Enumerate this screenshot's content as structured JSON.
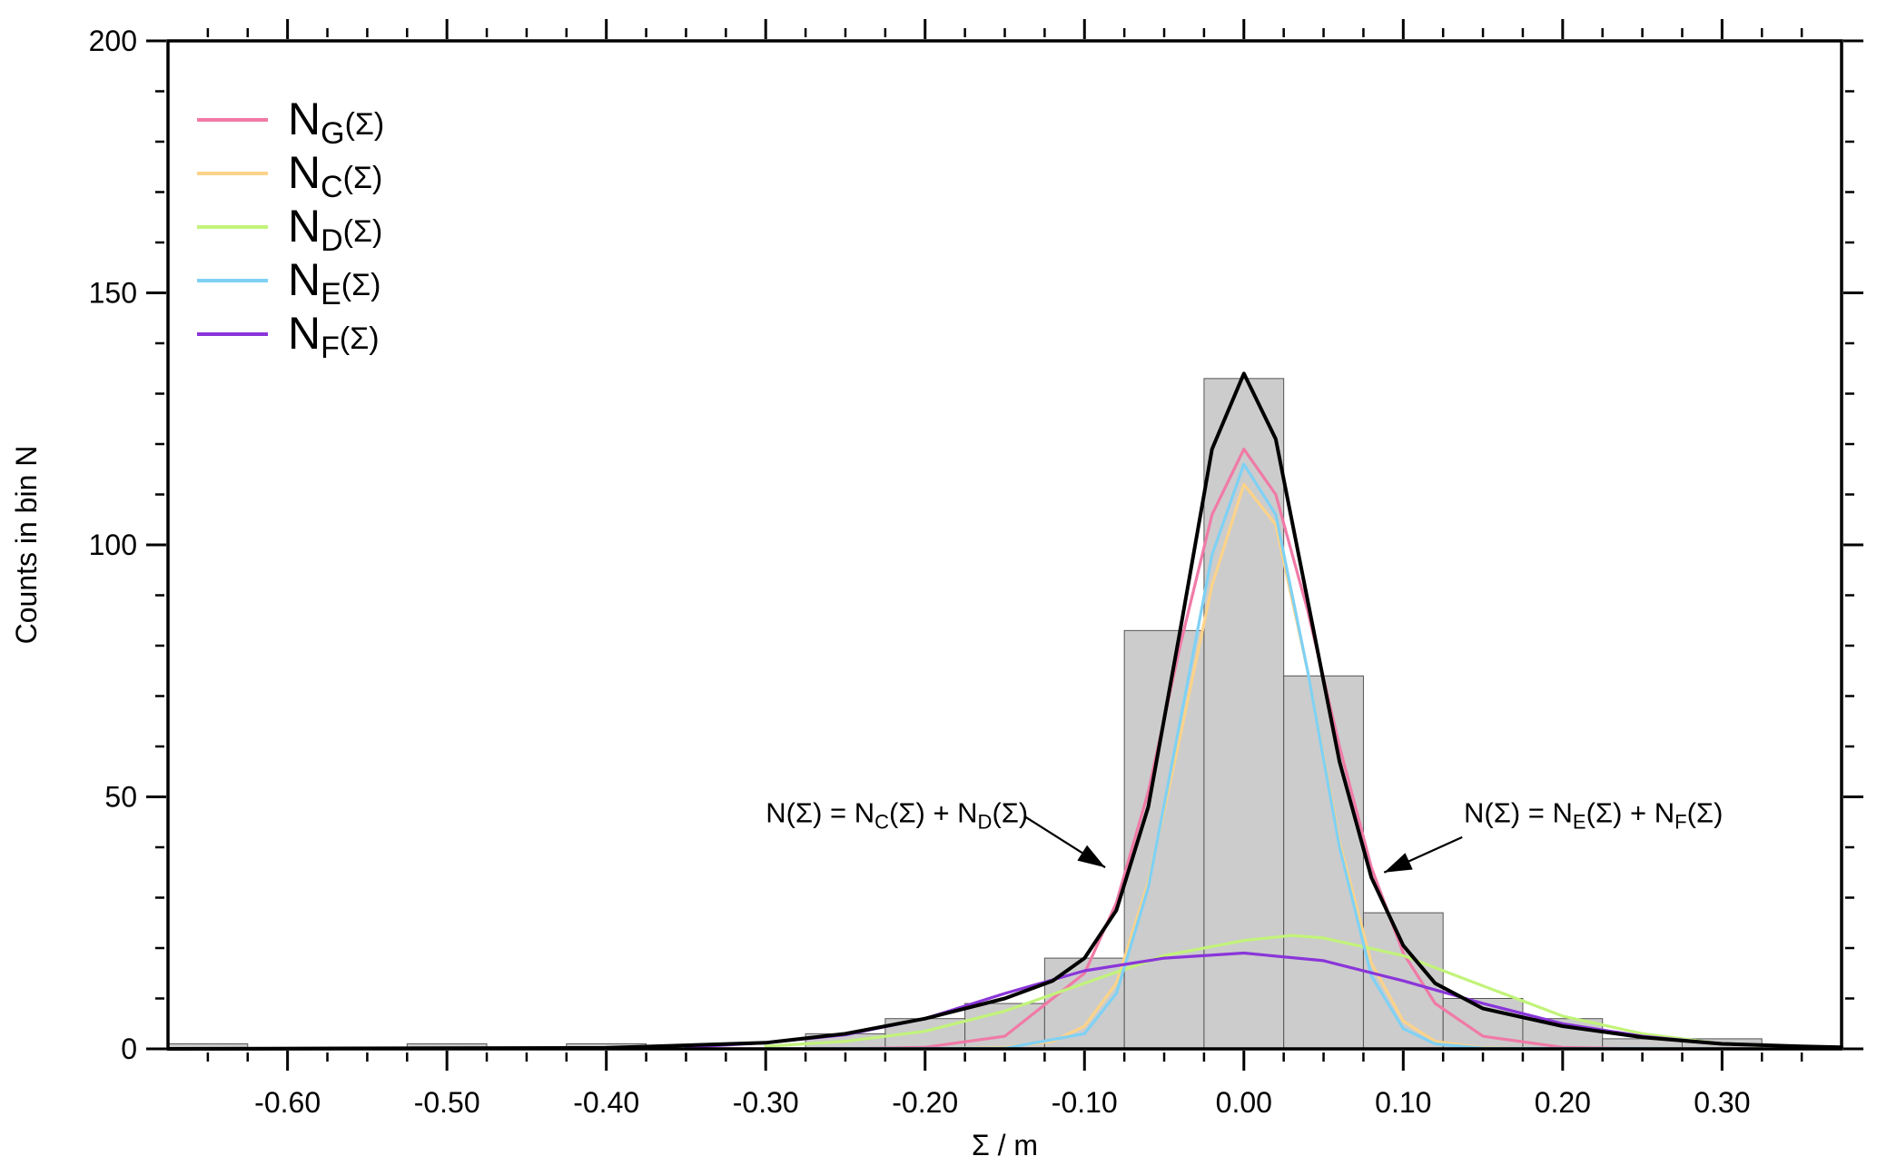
{
  "chart_data": {
    "type": "bar",
    "xlabel": "Σ / m",
    "ylabel": "Counts in bin N",
    "xlim": [
      -0.675,
      0.375
    ],
    "ylim": [
      0,
      200
    ],
    "x_ticks": [
      -0.6,
      -0.5,
      -0.4,
      -0.3,
      -0.2,
      -0.1,
      0.0,
      0.1,
      0.2,
      0.3
    ],
    "x_tick_labels": [
      "-0.60",
      "-0.50",
      "-0.40",
      "-0.30",
      "-0.20",
      "-0.10",
      "0.00",
      "0.10",
      "0.20",
      "0.30"
    ],
    "y_ticks": [
      0,
      50,
      100,
      150,
      200
    ],
    "y_tick_labels": [
      "0",
      "50",
      "100",
      "150",
      "200"
    ],
    "grid": false,
    "histogram": {
      "bin_width": 0.05,
      "bins": [
        {
          "center": -0.65,
          "count": 1
        },
        {
          "center": -0.5,
          "count": 1
        },
        {
          "center": -0.4,
          "count": 1
        },
        {
          "center": -0.25,
          "count": 3
        },
        {
          "center": -0.2,
          "count": 6
        },
        {
          "center": -0.15,
          "count": 9
        },
        {
          "center": -0.1,
          "count": 18
        },
        {
          "center": -0.05,
          "count": 83
        },
        {
          "center": 0.0,
          "count": 133
        },
        {
          "center": 0.05,
          "count": 74
        },
        {
          "center": 0.1,
          "count": 27
        },
        {
          "center": 0.15,
          "count": 10
        },
        {
          "center": 0.2,
          "count": 6
        },
        {
          "center": 0.25,
          "count": 2
        },
        {
          "center": 0.3,
          "count": 2
        }
      ]
    },
    "curves": [
      {
        "id": "G",
        "label_main": "N",
        "label_sub": "G",
        "label_tail": "(Σ)",
        "color": "#f07aa6",
        "x": [
          -0.35,
          -0.3,
          -0.25,
          -0.2,
          -0.15,
          -0.1,
          -0.08,
          -0.06,
          -0.04,
          -0.02,
          0.0,
          0.02,
          0.04,
          0.06,
          0.08,
          0.1,
          0.12,
          0.15,
          0.2,
          0.25,
          0.3,
          0.35,
          0.375
        ],
        "y": [
          0,
          0,
          0,
          0.3,
          2.5,
          15,
          29,
          51,
          80,
          106,
          119,
          110,
          87,
          60,
          36,
          19,
          9,
          2.5,
          0.3,
          0,
          0,
          0,
          0
        ]
      },
      {
        "id": "C",
        "label_main": "N",
        "label_sub": "C",
        "label_tail": "(Σ)",
        "color": "#fcd389",
        "x": [
          -0.3,
          -0.2,
          -0.15,
          -0.12,
          -0.1,
          -0.08,
          -0.06,
          -0.04,
          -0.02,
          0.0,
          0.02,
          0.04,
          0.06,
          0.08,
          0.1,
          0.12,
          0.15,
          0.2,
          0.3
        ],
        "y": [
          0,
          0,
          0.3,
          1.5,
          4.5,
          13,
          33,
          62,
          92,
          112,
          104,
          75,
          41,
          17,
          5.5,
          1.5,
          0.2,
          0,
          0
        ]
      },
      {
        "id": "D",
        "label_main": "N",
        "label_sub": "D",
        "label_tail": "(Σ)",
        "color": "#c2f37a",
        "x": [
          -0.3,
          -0.25,
          -0.2,
          -0.15,
          -0.1,
          -0.05,
          0.0,
          0.03,
          0.05,
          0.1,
          0.15,
          0.2,
          0.25,
          0.3,
          0.35
        ],
        "y": [
          0.5,
          1.5,
          3.5,
          7.5,
          13,
          18.5,
          21.5,
          22.5,
          22,
          18.5,
          12.5,
          6.5,
          3,
          1,
          0.3
        ]
      },
      {
        "id": "E",
        "label_main": "N",
        "label_sub": "E",
        "label_tail": "(Σ)",
        "color": "#7fd1f4",
        "x": [
          -0.3,
          -0.15,
          -0.1,
          -0.08,
          -0.06,
          -0.04,
          -0.02,
          0.0,
          0.02,
          0.04,
          0.06,
          0.08,
          0.1,
          0.12,
          0.15,
          0.3
        ],
        "y": [
          0,
          0.1,
          3,
          11,
          32,
          65,
          98,
          116,
          106,
          75,
          40,
          14.5,
          4,
          1,
          0.1,
          0
        ]
      },
      {
        "id": "F",
        "label_main": "N",
        "label_sub": "F",
        "label_tail": "(Σ)",
        "color": "#8a35d9",
        "x": [
          -0.35,
          -0.3,
          -0.25,
          -0.2,
          -0.15,
          -0.1,
          -0.05,
          0.0,
          0.05,
          0.1,
          0.15,
          0.2,
          0.25,
          0.3,
          0.35,
          0.375
        ],
        "y": [
          0.3,
          1.2,
          2.8,
          6,
          11,
          15.5,
          18,
          19,
          17.5,
          13.5,
          9,
          5,
          2.5,
          1,
          0.4,
          0.2
        ]
      },
      {
        "id": "total",
        "color": "#000000",
        "x": [
          -0.675,
          -0.4,
          -0.3,
          -0.25,
          -0.2,
          -0.15,
          -0.12,
          -0.1,
          -0.08,
          -0.06,
          -0.04,
          -0.02,
          0.0,
          0.02,
          0.04,
          0.06,
          0.08,
          0.1,
          0.12,
          0.15,
          0.2,
          0.25,
          0.3,
          0.35,
          0.375
        ],
        "y": [
          0,
          0.2,
          1.2,
          3,
          6,
          10,
          13.5,
          18,
          27.5,
          48,
          83,
          119,
          134,
          121,
          89,
          57,
          34,
          20.5,
          13,
          8,
          4.5,
          2.3,
          1,
          0.5,
          0.3
        ]
      }
    ],
    "annotations": [
      {
        "id": "left",
        "parts": [
          "N(Σ) = N",
          "C",
          "(Σ) + N",
          "D",
          "(Σ)"
        ],
        "text_x": -0.3,
        "text_y": 45,
        "arrow_from": [
          -0.137,
          46
        ],
        "arrow_to": [
          -0.087,
          36
        ]
      },
      {
        "id": "right",
        "parts": [
          "N(Σ) = N",
          "E",
          "(Σ) + N",
          "F",
          "(Σ)"
        ],
        "text_x": 0.138,
        "text_y": 45,
        "arrow_from": [
          0.137,
          42
        ],
        "arrow_to": [
          0.088,
          35
        ]
      }
    ]
  }
}
